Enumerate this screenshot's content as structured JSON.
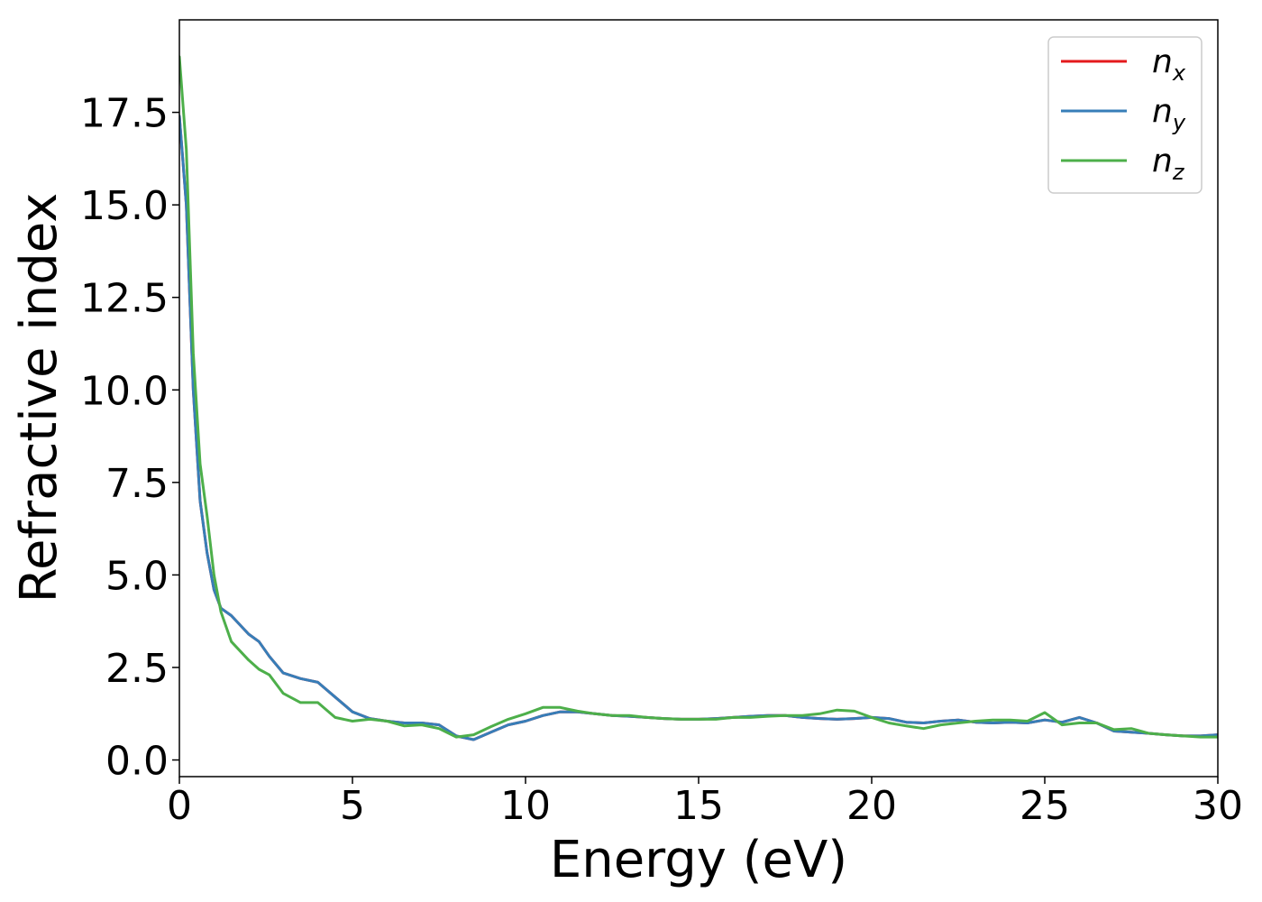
{
  "chart_data": {
    "type": "line",
    "title": "",
    "xlabel": "Energy (eV)",
    "ylabel": "Refractive index",
    "xlim": [
      0,
      30
    ],
    "ylim": [
      -0.45,
      20.0
    ],
    "xticks": [
      0,
      5,
      10,
      15,
      20,
      25,
      30
    ],
    "xtick_labels": [
      "0",
      "5",
      "10",
      "15",
      "20",
      "25",
      "30"
    ],
    "yticks": [
      0.0,
      2.5,
      5.0,
      7.5,
      10.0,
      12.5,
      15.0,
      17.5
    ],
    "ytick_labels": [
      "0.0",
      "2.5",
      "5.0",
      "7.5",
      "10.0",
      "12.5",
      "15.0",
      "17.5"
    ],
    "grid": false,
    "legend": "top-right",
    "series": [
      {
        "name": "n",
        "subscript": "x",
        "color": "#e41a1c",
        "x": [
          0,
          0.2,
          0.4,
          0.6,
          0.8,
          1.0,
          1.2,
          1.5,
          2.0,
          2.3,
          2.6,
          3.0,
          3.5,
          4.0,
          4.5,
          5.0,
          5.5,
          6.0,
          6.5,
          7.0,
          7.5,
          8.0,
          8.5,
          9.0,
          9.5,
          10.0,
          10.5,
          11.0,
          11.5,
          12.0,
          12.5,
          13.0,
          13.5,
          14.0,
          14.5,
          15.0,
          15.5,
          16.0,
          16.5,
          17.0,
          17.5,
          18.0,
          18.5,
          19.0,
          19.5,
          20.0,
          20.5,
          21.0,
          21.5,
          22.0,
          22.5,
          23.0,
          23.5,
          24.0,
          24.5,
          25.0,
          25.5,
          26.0,
          26.5,
          27.0,
          27.5,
          28.0,
          28.5,
          29.0,
          29.5,
          30.0
        ],
        "y": [
          17.4,
          15.0,
          10.0,
          7.0,
          5.6,
          4.6,
          4.1,
          3.9,
          3.4,
          3.2,
          2.8,
          2.35,
          2.2,
          2.1,
          1.7,
          1.3,
          1.12,
          1.05,
          1.0,
          1.0,
          0.95,
          0.65,
          0.55,
          0.75,
          0.95,
          1.05,
          1.2,
          1.3,
          1.3,
          1.25,
          1.2,
          1.18,
          1.15,
          1.12,
          1.1,
          1.1,
          1.12,
          1.15,
          1.18,
          1.2,
          1.2,
          1.15,
          1.12,
          1.1,
          1.12,
          1.15,
          1.12,
          1.02,
          1.0,
          1.05,
          1.08,
          1.02,
          1.0,
          1.02,
          1.0,
          1.08,
          1.02,
          1.15,
          1.0,
          0.78,
          0.75,
          0.72,
          0.68,
          0.65,
          0.65,
          0.68
        ]
      },
      {
        "name": "n",
        "subscript": "y",
        "color": "#377eb8",
        "x": [
          0,
          0.2,
          0.4,
          0.6,
          0.8,
          1.0,
          1.2,
          1.5,
          2.0,
          2.3,
          2.6,
          3.0,
          3.5,
          4.0,
          4.5,
          5.0,
          5.5,
          6.0,
          6.5,
          7.0,
          7.5,
          8.0,
          8.5,
          9.0,
          9.5,
          10.0,
          10.5,
          11.0,
          11.5,
          12.0,
          12.5,
          13.0,
          13.5,
          14.0,
          14.5,
          15.0,
          15.5,
          16.0,
          16.5,
          17.0,
          17.5,
          18.0,
          18.5,
          19.0,
          19.5,
          20.0,
          20.5,
          21.0,
          21.5,
          22.0,
          22.5,
          23.0,
          23.5,
          24.0,
          24.5,
          25.0,
          25.5,
          26.0,
          26.5,
          27.0,
          27.5,
          28.0,
          28.5,
          29.0,
          29.5,
          30.0
        ],
        "y": [
          17.4,
          15.0,
          10.0,
          7.0,
          5.6,
          4.6,
          4.1,
          3.9,
          3.4,
          3.2,
          2.8,
          2.35,
          2.2,
          2.1,
          1.7,
          1.3,
          1.12,
          1.05,
          1.0,
          1.0,
          0.95,
          0.65,
          0.55,
          0.75,
          0.95,
          1.05,
          1.2,
          1.3,
          1.3,
          1.25,
          1.2,
          1.18,
          1.15,
          1.12,
          1.1,
          1.1,
          1.12,
          1.15,
          1.18,
          1.2,
          1.2,
          1.15,
          1.12,
          1.1,
          1.12,
          1.15,
          1.12,
          1.02,
          1.0,
          1.05,
          1.08,
          1.02,
          1.0,
          1.02,
          1.0,
          1.08,
          1.02,
          1.15,
          1.0,
          0.78,
          0.75,
          0.72,
          0.68,
          0.65,
          0.65,
          0.68
        ]
      },
      {
        "name": "n",
        "subscript": "z",
        "color": "#4daf4a",
        "x": [
          0,
          0.2,
          0.4,
          0.6,
          0.8,
          1.0,
          1.2,
          1.5,
          2.0,
          2.3,
          2.6,
          3.0,
          3.5,
          4.0,
          4.5,
          5.0,
          5.5,
          6.0,
          6.5,
          7.0,
          7.5,
          8.0,
          8.5,
          9.0,
          9.5,
          10.0,
          10.5,
          11.0,
          11.5,
          12.0,
          12.5,
          13.0,
          13.5,
          14.0,
          14.5,
          15.0,
          15.5,
          16.0,
          16.5,
          17.0,
          17.5,
          18.0,
          18.5,
          19.0,
          19.5,
          20.0,
          20.5,
          21.0,
          21.5,
          22.0,
          22.5,
          23.0,
          23.5,
          24.0,
          24.5,
          25.0,
          25.5,
          26.0,
          26.5,
          27.0,
          27.5,
          28.0,
          28.5,
          29.0,
          29.5,
          30.0
        ],
        "y": [
          19.0,
          16.5,
          11.0,
          8.0,
          6.6,
          5.0,
          4.0,
          3.2,
          2.7,
          2.45,
          2.3,
          1.8,
          1.55,
          1.55,
          1.15,
          1.05,
          1.1,
          1.05,
          0.92,
          0.95,
          0.85,
          0.62,
          0.68,
          0.9,
          1.1,
          1.25,
          1.42,
          1.42,
          1.32,
          1.25,
          1.2,
          1.2,
          1.15,
          1.12,
          1.1,
          1.1,
          1.1,
          1.15,
          1.15,
          1.18,
          1.2,
          1.2,
          1.25,
          1.35,
          1.32,
          1.15,
          1.0,
          0.92,
          0.85,
          0.95,
          1.0,
          1.05,
          1.08,
          1.08,
          1.05,
          1.28,
          0.95,
          1.0,
          1.0,
          0.82,
          0.85,
          0.72,
          0.68,
          0.65,
          0.62,
          0.62
        ]
      }
    ]
  }
}
